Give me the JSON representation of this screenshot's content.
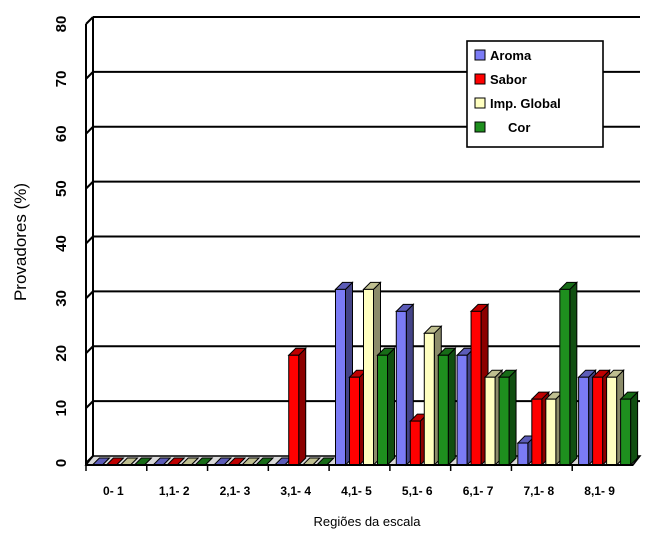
{
  "chart_data": {
    "type": "bar",
    "title": "",
    "xlabel": "Regiões da escala",
    "ylabel": "Provadores (%)",
    "ylim": [
      0,
      80
    ],
    "yticks": [
      0,
      10,
      20,
      30,
      40,
      50,
      60,
      70,
      80
    ],
    "grid": true,
    "legend_position": "top-right",
    "categories": [
      "0- 1",
      "1,1- 2",
      "2,1- 3",
      "3,1- 4",
      "4,1- 5",
      "5,1- 6",
      "6,1- 7",
      "7,1- 8",
      "8,1- 9"
    ],
    "series": [
      {
        "name": "Aroma",
        "color": "#7b7bf5",
        "values": [
          0,
          0,
          0,
          0,
          32,
          28,
          20,
          4,
          16
        ]
      },
      {
        "name": "Sabor",
        "color": "#ff0000",
        "values": [
          0,
          0,
          0,
          20,
          16,
          8,
          28,
          12,
          16
        ]
      },
      {
        "name": "Imp. Global",
        "color": "#ffffc0",
        "values": [
          0,
          0,
          0,
          0,
          32,
          24,
          16,
          12,
          16
        ]
      },
      {
        "name": "Cor",
        "color": "#1e8f1e",
        "values": [
          0,
          0,
          0,
          0,
          20,
          20,
          16,
          32,
          12
        ]
      }
    ]
  }
}
